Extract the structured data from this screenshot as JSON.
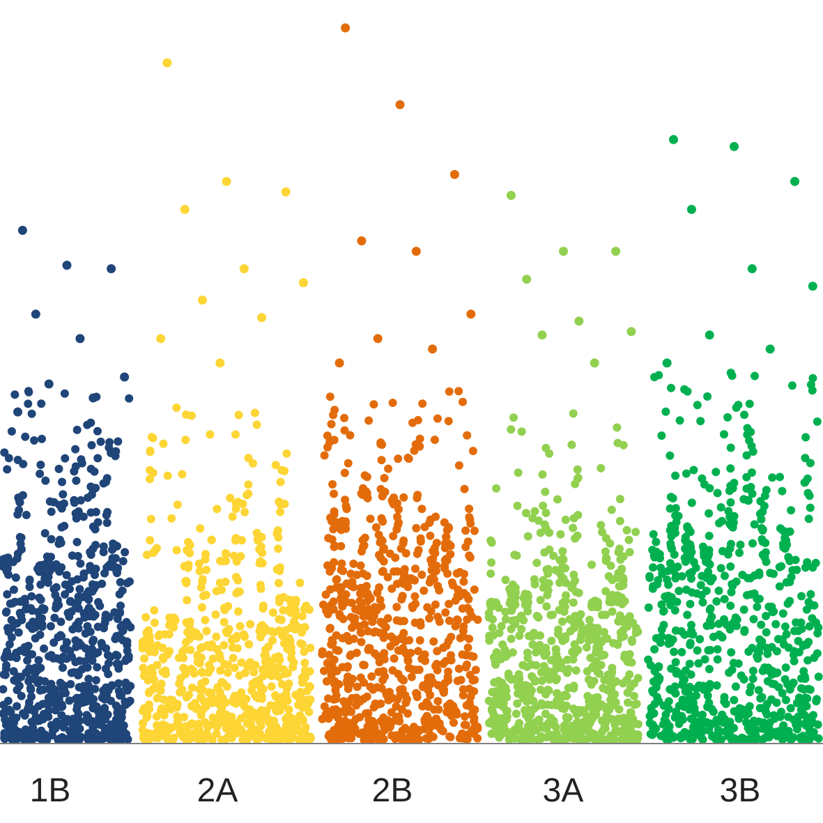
{
  "chart_data": {
    "type": "scatter",
    "title": "",
    "xlabel": "",
    "ylabel": "",
    "grid": false,
    "legend": "none",
    "categories": [
      "1B",
      "2A",
      "2B",
      "3A",
      "3B"
    ],
    "ylim": [
      0,
      10
    ],
    "series": [
      {
        "group": "1B",
        "color": "#1f4579",
        "highlights": [
          {
            "y": 7.3
          },
          {
            "y": 6.8
          },
          {
            "y": 6.75
          },
          {
            "y": 6.1
          },
          {
            "y": 5.75
          },
          {
            "y": 5.2
          },
          {
            "y": 5.1
          },
          {
            "y": 4.9
          },
          {
            "y": 4.7
          }
        ]
      },
      {
        "group": "2A",
        "color": "#fdd535",
        "highlights": [
          {
            "y": 9.7
          },
          {
            "y": 8.0
          },
          {
            "y": 7.85
          },
          {
            "y": 7.6
          },
          {
            "y": 6.75
          },
          {
            "y": 6.55
          },
          {
            "y": 6.3
          },
          {
            "y": 6.05
          },
          {
            "y": 5.75
          },
          {
            "y": 5.4
          }
        ]
      },
      {
        "group": "2B",
        "color": "#e36c0a",
        "highlights": [
          {
            "y": 10.2
          },
          {
            "y": 9.1
          },
          {
            "y": 8.1
          },
          {
            "y": 7.15
          },
          {
            "y": 7.0
          },
          {
            "y": 6.1
          },
          {
            "y": 5.75
          },
          {
            "y": 5.6
          },
          {
            "y": 5.4
          }
        ]
      },
      {
        "group": "3A",
        "color": "#92d050",
        "highlights": [
          {
            "y": 7.8
          },
          {
            "y": 7.0
          },
          {
            "y": 7.0
          },
          {
            "y": 6.6
          },
          {
            "y": 6.0
          },
          {
            "y": 5.85
          },
          {
            "y": 5.8
          },
          {
            "y": 5.4
          }
        ]
      },
      {
        "group": "3B",
        "color": "#00b050",
        "highlights": [
          {
            "y": 8.6
          },
          {
            "y": 8.5
          },
          {
            "y": 8.0
          },
          {
            "y": 7.6
          },
          {
            "y": 6.75
          },
          {
            "y": 6.5
          },
          {
            "y": 5.8
          },
          {
            "y": 5.6
          },
          {
            "y": 5.4
          }
        ]
      }
    ]
  }
}
